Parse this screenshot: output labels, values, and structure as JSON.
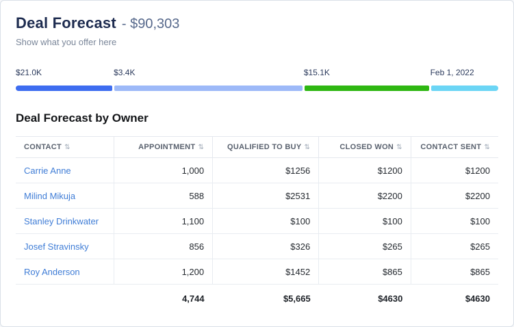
{
  "header": {
    "title": "Deal Forecast",
    "amount": "- $90,303",
    "subtitle": "Show what you offer here"
  },
  "progress": {
    "segments": [
      {
        "label": "$21.0K",
        "color": "#3e6df0",
        "width_pct": 20.3,
        "left_pct": 0
      },
      {
        "label": "$3.4K",
        "color": "#9db9f8",
        "width_pct": 39.4,
        "left_pct": 20.3
      },
      {
        "label": "$15.1K",
        "color": "#2eb712",
        "width_pct": 26.2,
        "left_pct": 59.7
      },
      {
        "label": "Feb 1, 2022",
        "color": "#6bd5f5",
        "width_pct": 14.1,
        "left_pct": 85.9
      }
    ]
  },
  "section": {
    "title": "Deal Forecast by Owner"
  },
  "table": {
    "columns": {
      "contact": "Contact",
      "appointment": "Appointment",
      "qualified": "Qualified to buy",
      "closed": "Closed won",
      "sent": "Contact sent"
    },
    "sort_icon": "⇅",
    "rows": [
      {
        "contact": "Carrie Anne",
        "appointment": "1,000",
        "qualified": "$1256",
        "closed": "$1200",
        "sent": "$1200"
      },
      {
        "contact": "Milind Mikuja",
        "appointment": "588",
        "qualified": "$2531",
        "closed": "$2200",
        "sent": "$2200"
      },
      {
        "contact": "Stanley Drinkwater",
        "appointment": "1,100",
        "qualified": "$100",
        "closed": "$100",
        "sent": "$100"
      },
      {
        "contact": "Josef Stravinsky",
        "appointment": "856",
        "qualified": "$326",
        "closed": "$265",
        "sent": "$265"
      },
      {
        "contact": "Roy Anderson",
        "appointment": "1,200",
        "qualified": "$1452",
        "closed": "$865",
        "sent": "$865"
      }
    ],
    "totals": {
      "appointment": "4,744",
      "qualified": "$5,665",
      "closed": "$4630",
      "sent": "$4630"
    }
  }
}
